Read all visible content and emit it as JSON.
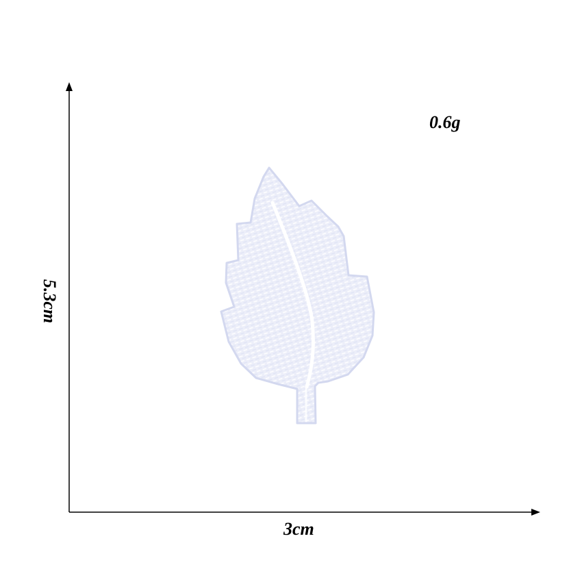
{
  "product": {
    "name": "leaf-embroidered-patch",
    "color": "#eceef9",
    "outline_color": "#d3d8ef",
    "stitch_color": "#ffffff"
  },
  "dimensions": {
    "weight": "0.6g",
    "width": "3cm",
    "height": "5.3cm"
  },
  "axes": {
    "color": "#000000"
  }
}
